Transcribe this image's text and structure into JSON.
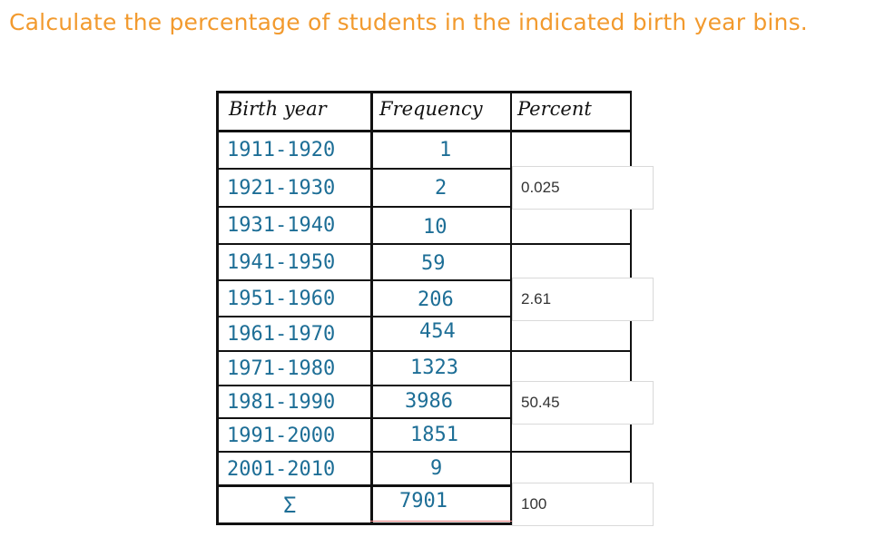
{
  "prompt": "Calculate the percentage of students in the indicated birth year bins.",
  "table": {
    "headers": {
      "birth_year": "Birth year",
      "frequency": "Frequency",
      "percent": "Percent"
    },
    "rows": [
      {
        "years": "1911-1920",
        "freq": "1"
      },
      {
        "years": "1921-1930",
        "freq": "2"
      },
      {
        "years": "1931-1940",
        "freq": "10"
      },
      {
        "years": "1941-1950",
        "freq": "59"
      },
      {
        "years": "1951-1960",
        "freq": "206"
      },
      {
        "years": "1961-1970",
        "freq": "454"
      },
      {
        "years": "1971-1980",
        "freq": "1323"
      },
      {
        "years": "1981-1990",
        "freq": "3986"
      },
      {
        "years": "1991-2000",
        "freq": "1851"
      },
      {
        "years": "2001-2010",
        "freq": "9"
      }
    ],
    "total": {
      "symbol": "Σ",
      "freq": "7901"
    }
  },
  "inputs": {
    "p1921": "0.025",
    "p1951": "2.61",
    "p1981": "50.45",
    "total": "100"
  },
  "colors": {
    "prompt": "#f29a2e",
    "handwriting": "#1d6e96"
  }
}
